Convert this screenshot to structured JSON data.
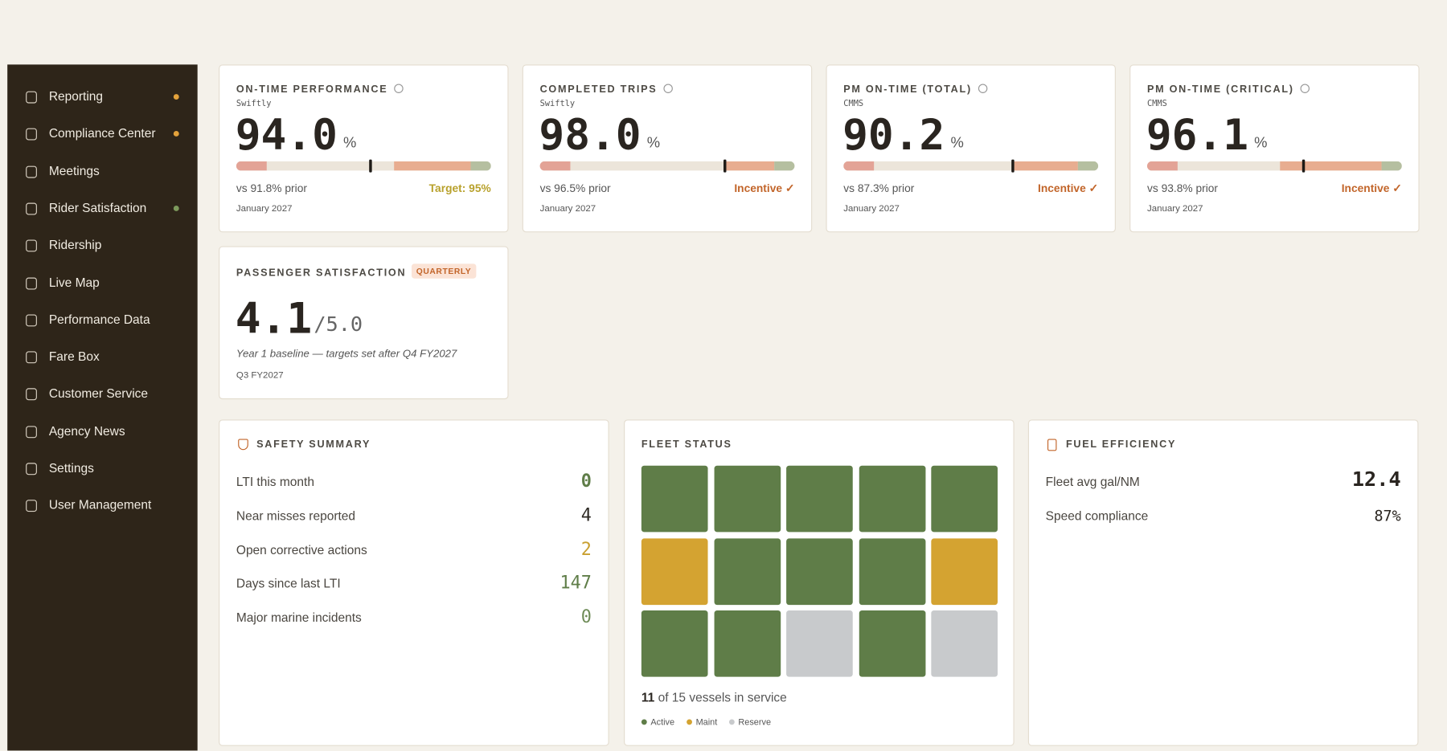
{
  "sidebar": {
    "items": [
      {
        "label": "Reporting",
        "dot": "#e3a23b"
      },
      {
        "label": "Compliance Center",
        "dot": "#e3a23b"
      },
      {
        "label": "Meetings"
      },
      {
        "label": "Rider Satisfaction",
        "dot": "#7d9a5c"
      },
      {
        "label": "Ridership"
      },
      {
        "label": "Live Map"
      },
      {
        "label": "Performance Data"
      },
      {
        "label": "Fare Box"
      },
      {
        "label": "Customer Service"
      },
      {
        "label": "Agency News"
      },
      {
        "label": "Settings"
      },
      {
        "label": "User Management"
      }
    ]
  },
  "kpis": [
    {
      "title": "ON-TIME PERFORMANCE",
      "source": "Swiftly",
      "value": "94.0",
      "unit": "%",
      "prior": "vs 91.8% prior",
      "status": "Target: 95%",
      "status_color": "#b8a12c",
      "period": "January 2027"
    },
    {
      "title": "COMPLETED TRIPS",
      "source": "Swiftly",
      "value": "98.0",
      "unit": "%",
      "prior": "vs 96.5% prior",
      "status": "Incentive ✓",
      "status_color": "#c2652a",
      "period": "January 2027"
    },
    {
      "title": "PM ON-TIME (TOTAL)",
      "source": "CMMS",
      "value": "90.2",
      "unit": "%",
      "prior": "vs 87.3% prior",
      "status": "Incentive ✓",
      "status_color": "#c2652a",
      "period": "January 2027"
    },
    {
      "title": "PM ON-TIME (CRITICAL)",
      "source": "CMMS",
      "value": "96.1",
      "unit": "%",
      "prior": "vs 93.8% prior",
      "status": "Incentive ✓",
      "status_color": "#c2652a",
      "period": "January 2027"
    }
  ],
  "satisfaction": {
    "title": "PASSENGER SATISFACTION",
    "badge": "QUARTERLY",
    "value": "4.1",
    "scale": "/5.0",
    "note": "Year 1 baseline — targets set after Q4 FY2027",
    "period": "Q3 FY2027"
  },
  "safety": {
    "title": "SAFETY SUMMARY",
    "rows": [
      {
        "label": "LTI this month",
        "value": "0",
        "color": "#5f7d48"
      },
      {
        "label": "Near misses reported",
        "value": "4",
        "color": "#2e2a24"
      },
      {
        "label": "Open corrective actions",
        "value": "2",
        "color": "#c9a030"
      },
      {
        "label": "Days since last LTI",
        "value": "147",
        "color": "#5f7d48"
      },
      {
        "label": "Major marine incidents",
        "value": "0",
        "color": "#6f8c58"
      }
    ]
  },
  "fleet": {
    "title": "FLEET STATUS",
    "tiles": [
      "Active",
      "Active",
      "Active",
      "Active",
      "Active",
      "Maint",
      "Active",
      "Active",
      "Active",
      "Maint",
      "Active",
      "Active",
      "Reserve",
      "Active",
      "Reserve"
    ],
    "count": "11",
    "summary": "of 15 vessels in service",
    "legend": [
      {
        "label": "Active",
        "color": "#5f7d48"
      },
      {
        "label": "Maint",
        "color": "#d4a331"
      },
      {
        "label": "Reserve",
        "color": "#c8cacc"
      }
    ]
  },
  "fuel": {
    "title": "FUEL EFFICIENCY",
    "rows": [
      {
        "label": "Fleet avg gal/NM",
        "value": "12.4"
      },
      {
        "label": "Speed compliance",
        "value": "87%"
      }
    ]
  }
}
